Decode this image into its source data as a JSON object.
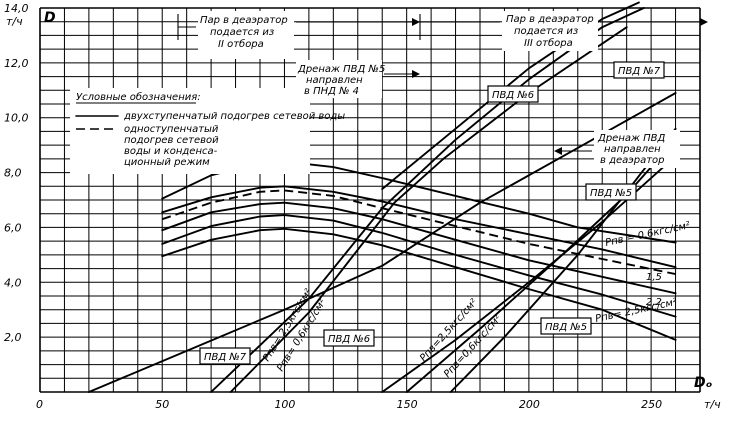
{
  "chart_data": {
    "type": "line",
    "title": "",
    "xlabel": "Dₒ",
    "xunit": "т/ч",
    "ylabel": "D",
    "yunit": "т/ч",
    "xlim": [
      0,
      270
    ],
    "ylim": [
      0,
      14.0
    ],
    "x_grid_step": 10,
    "y_grid_step": 0.5,
    "x_ticks": [
      {
        "value": 0,
        "label": "0"
      },
      {
        "value": 50,
        "label": "50"
      },
      {
        "value": 100,
        "label": "100"
      },
      {
        "value": 150,
        "label": "150"
      },
      {
        "value": 200,
        "label": "200"
      },
      {
        "value": 250,
        "label": "250"
      }
    ],
    "y_ticks": [
      {
        "value": 2.0,
        "label": "2,0"
      },
      {
        "value": 4.0,
        "label": "4,0"
      },
      {
        "value": 6.0,
        "label": "6,0"
      },
      {
        "value": 8.0,
        "label": "8,0"
      },
      {
        "value": 10.0,
        "label": "10,0"
      },
      {
        "value": 12.0,
        "label": "12,0"
      },
      {
        "value": 14.0,
        "label": "14,0"
      }
    ],
    "legend": {
      "title": "Условные обозначения:",
      "entries": [
        {
          "style": "solid",
          "label_lines": [
            "двухступенчатый подогрев сетевой воды"
          ]
        },
        {
          "style": "dashed",
          "label_lines": [
            "одноступенчатый",
            "подогрев сетевой",
            "воды и конденса-",
            "ционный режим"
          ]
        }
      ]
    },
    "series": [
      {
        "name": "",
        "style": "solid",
        "points": [
          [
            50,
            7.05
          ],
          [
            70,
            7.9
          ],
          [
            90,
            8.35
          ],
          [
            100,
            8.4
          ],
          [
            120,
            8.2
          ],
          [
            140,
            7.8
          ],
          [
            170,
            7.15
          ],
          [
            200,
            6.5
          ],
          [
            220,
            6.0
          ],
          [
            260,
            5.45
          ]
        ]
      },
      {
        "name": "",
        "style": "solid",
        "points": [
          [
            50,
            6.55
          ],
          [
            70,
            7.1
          ],
          [
            90,
            7.45
          ],
          [
            100,
            7.5
          ],
          [
            120,
            7.3
          ],
          [
            140,
            6.95
          ],
          [
            170,
            6.3
          ],
          [
            200,
            5.75
          ],
          [
            230,
            5.2
          ],
          [
            260,
            4.55
          ]
        ]
      },
      {
        "name": "",
        "style": "dashed",
        "points": [
          [
            50,
            6.3
          ],
          [
            70,
            6.9
          ],
          [
            90,
            7.3
          ],
          [
            100,
            7.35
          ],
          [
            120,
            7.15
          ],
          [
            140,
            6.7
          ],
          [
            170,
            6.05
          ],
          [
            200,
            5.4
          ],
          [
            230,
            4.85
          ],
          [
            260,
            4.3
          ]
        ]
      },
      {
        "name": "",
        "style": "solid",
        "points": [
          [
            50,
            5.9
          ],
          [
            70,
            6.55
          ],
          [
            90,
            6.85
          ],
          [
            100,
            6.9
          ],
          [
            120,
            6.7
          ],
          [
            140,
            6.3
          ],
          [
            170,
            5.55
          ],
          [
            200,
            4.8
          ],
          [
            230,
            4.2
          ],
          [
            260,
            3.6
          ]
        ]
      },
      {
        "name": "",
        "style": "solid",
        "points": [
          [
            50,
            5.4
          ],
          [
            70,
            6.05
          ],
          [
            90,
            6.4
          ],
          [
            100,
            6.45
          ],
          [
            120,
            6.25
          ],
          [
            140,
            5.8
          ],
          [
            170,
            5.0
          ],
          [
            200,
            4.25
          ],
          [
            230,
            3.55
          ],
          [
            260,
            2.75
          ]
        ]
      },
      {
        "name": "",
        "style": "solid",
        "points": [
          [
            50,
            4.95
          ],
          [
            70,
            5.55
          ],
          [
            90,
            5.9
          ],
          [
            100,
            5.95
          ],
          [
            120,
            5.75
          ],
          [
            140,
            5.35
          ],
          [
            170,
            4.55
          ],
          [
            200,
            3.75
          ],
          [
            230,
            3.0
          ],
          [
            260,
            1.9
          ]
        ]
      },
      {
        "name": "",
        "style": "solid",
        "points": [
          [
            20,
            0.0
          ],
          [
            60,
            1.5
          ],
          [
            100,
            3.0
          ],
          [
            140,
            4.6
          ],
          [
            180,
            6.9
          ],
          [
            220,
            8.9
          ],
          [
            260,
            10.9
          ]
        ]
      },
      {
        "name": "",
        "style": "solid",
        "points": [
          [
            70,
            0.0
          ],
          [
            110,
            3.4
          ],
          [
            140,
            6.7
          ],
          [
            170,
            9.2
          ],
          [
            200,
            11.4
          ],
          [
            230,
            13.3
          ],
          [
            247,
            14.0
          ]
        ]
      },
      {
        "name": "",
        "style": "solid",
        "points": [
          [
            78,
            0.0
          ],
          [
            110,
            2.9
          ],
          [
            145,
            6.9
          ],
          [
            165,
            8.5
          ],
          [
            200,
            10.9
          ],
          [
            240,
            13.3
          ]
        ]
      },
      {
        "name": "",
        "style": "solid",
        "points": [
          [
            140,
            7.4
          ],
          [
            170,
            9.6
          ],
          [
            200,
            11.8
          ],
          [
            230,
            13.6
          ],
          [
            245,
            14.2
          ]
        ]
      },
      {
        "name": "",
        "style": "solid",
        "points": [
          [
            140,
            0.0
          ],
          [
            170,
            1.9
          ],
          [
            200,
            4.0
          ],
          [
            230,
            6.2
          ],
          [
            260,
            8.6
          ]
        ]
      },
      {
        "name": "",
        "style": "solid",
        "points": [
          [
            150,
            0.0
          ],
          [
            180,
            2.3
          ],
          [
            210,
            4.7
          ],
          [
            240,
            7.2
          ],
          [
            260,
            9.2
          ]
        ]
      },
      {
        "name": "",
        "style": "solid",
        "points": [
          [
            168,
            0.0
          ],
          [
            190,
            2.0
          ],
          [
            220,
            5.0
          ],
          [
            260,
            9.6
          ]
        ]
      }
    ],
    "annotations": [
      {
        "lines": [
          "Пар в деаэратор",
          "подается из",
          "II отбора"
        ]
      },
      {
        "lines": [
          "Пар в деаэратор",
          "подается из",
          "III отбора"
        ]
      },
      {
        "lines": [
          "Дренаж ПВД №5",
          "направлен",
          "в ПНД № 4"
        ]
      },
      {
        "lines": [
          "Дренаж ПВД",
          "направлен",
          "в деаэратор"
        ]
      },
      {
        "lines": [
          "ПВД №7"
        ]
      },
      {
        "lines": [
          "ПВД №6"
        ]
      },
      {
        "lines": [
          "ПВД №5"
        ]
      },
      {
        "lines": [
          "ПВД №5"
        ]
      },
      {
        "lines": [
          "ПВД №7"
        ]
      },
      {
        "lines": [
          "ПВД №6"
        ]
      },
      {
        "lines": [
          "Рпв = 0,6кгс/см²"
        ]
      },
      {
        "lines": [
          "1,5"
        ]
      },
      {
        "lines": [
          "2,2"
        ]
      },
      {
        "lines": [
          "Рпв= 2,5кгс/см²"
        ]
      },
      {
        "lines": [
          "Рпв= 2,5кгс/см²"
        ]
      },
      {
        "lines": [
          "Рпв= 0,6кгс/см²"
        ]
      },
      {
        "lines": [
          "Рпв=2,5кгс/см²"
        ]
      },
      {
        "lines": [
          "Рпв=0,6кгс/см²"
        ]
      }
    ]
  }
}
